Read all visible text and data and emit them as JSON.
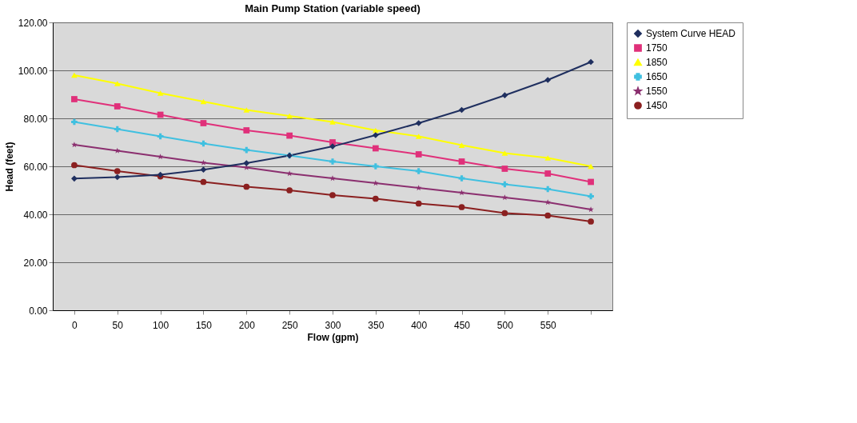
{
  "chart_data": {
    "type": "line",
    "title": "Main Pump Station (variable speed)",
    "xlabel": "Flow (gpm)",
    "ylabel": "Head (feet)",
    "categories": [
      "0",
      "50",
      "100",
      "150",
      "200",
      "250",
      "300",
      "350",
      "400",
      "450",
      "500",
      "550",
      null
    ],
    "ylim": [
      0,
      120
    ],
    "yticks": [
      {
        "value": 0,
        "label": "0.00"
      },
      {
        "value": 20,
        "label": "20.00"
      },
      {
        "value": 40,
        "label": "40.00"
      },
      {
        "value": 60,
        "label": "60.00"
      },
      {
        "value": 80,
        "label": "80.00"
      },
      {
        "value": 100,
        "label": "100.00"
      },
      {
        "value": 120,
        "label": "120.00"
      }
    ],
    "grid": "y",
    "legend": "right",
    "line_style": "solid",
    "series": [
      {
        "name": "System Curve HEAD",
        "color": "#1f2f5f",
        "marker": "diamond",
        "values": [
          54.9,
          55.5,
          56.5,
          58.6,
          61.3,
          64.5,
          68.3,
          73,
          78,
          83.5,
          89.6,
          96,
          103.5
        ]
      },
      {
        "name": "1750",
        "color": "#e0307a",
        "marker": "square",
        "values": [
          88,
          85,
          81.5,
          78,
          75,
          72.8,
          70,
          67.5,
          65,
          62,
          59,
          57,
          53.5
        ]
      },
      {
        "name": "1850",
        "color": "#ffff00",
        "marker": "triangle",
        "values": [
          98,
          94.5,
          90.5,
          87,
          83.5,
          81,
          78.5,
          75,
          72.5,
          68.8,
          65.5,
          63.5,
          60
        ]
      },
      {
        "name": "1650",
        "color": "#40c0e0",
        "marker": "cross",
        "values": [
          78.5,
          75.5,
          72.5,
          69.5,
          66.8,
          64.5,
          62,
          60,
          58,
          55,
          52.5,
          50.5,
          47.5
        ]
      },
      {
        "name": "1550",
        "color": "#8b2f6f",
        "marker": "star",
        "values": [
          69,
          66.5,
          64,
          61.5,
          59.5,
          57,
          55,
          53,
          51,
          49,
          47,
          45,
          42
        ]
      },
      {
        "name": "1450",
        "color": "#8b2020",
        "marker": "circle",
        "values": [
          60.5,
          58,
          55.8,
          53.5,
          51.5,
          50,
          48,
          46.5,
          44.5,
          43,
          40.5,
          39.5,
          37
        ]
      }
    ]
  }
}
